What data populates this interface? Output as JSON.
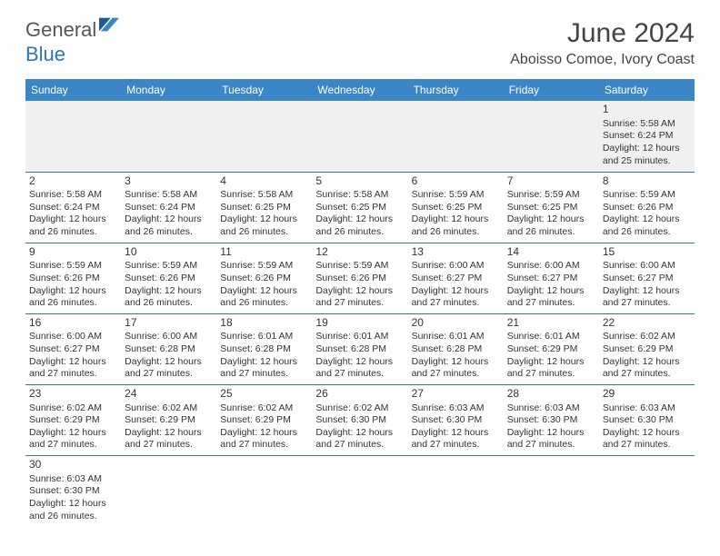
{
  "brand": {
    "part1": "General",
    "part2": "Blue"
  },
  "title": "June 2024",
  "location": "Aboisso Comoe, Ivory Coast",
  "colors": {
    "header_bg": "#3b86c7",
    "header_text": "#ffffff",
    "cell_border": "#2b77bd",
    "alt_row_bg": "#f0f0f0",
    "text": "#333333",
    "logo_gray": "#555555",
    "logo_blue": "#2b77bd"
  },
  "day_headers": [
    "Sunday",
    "Monday",
    "Tuesday",
    "Wednesday",
    "Thursday",
    "Friday",
    "Saturday"
  ],
  "weeks": [
    [
      null,
      null,
      null,
      null,
      null,
      null,
      {
        "n": "1",
        "sr": "5:58 AM",
        "ss": "6:24 PM",
        "dl": "12 hours and 25 minutes."
      }
    ],
    [
      {
        "n": "2",
        "sr": "5:58 AM",
        "ss": "6:24 PM",
        "dl": "12 hours and 26 minutes."
      },
      {
        "n": "3",
        "sr": "5:58 AM",
        "ss": "6:24 PM",
        "dl": "12 hours and 26 minutes."
      },
      {
        "n": "4",
        "sr": "5:58 AM",
        "ss": "6:25 PM",
        "dl": "12 hours and 26 minutes."
      },
      {
        "n": "5",
        "sr": "5:58 AM",
        "ss": "6:25 PM",
        "dl": "12 hours and 26 minutes."
      },
      {
        "n": "6",
        "sr": "5:59 AM",
        "ss": "6:25 PM",
        "dl": "12 hours and 26 minutes."
      },
      {
        "n": "7",
        "sr": "5:59 AM",
        "ss": "6:25 PM",
        "dl": "12 hours and 26 minutes."
      },
      {
        "n": "8",
        "sr": "5:59 AM",
        "ss": "6:26 PM",
        "dl": "12 hours and 26 minutes."
      }
    ],
    [
      {
        "n": "9",
        "sr": "5:59 AM",
        "ss": "6:26 PM",
        "dl": "12 hours and 26 minutes."
      },
      {
        "n": "10",
        "sr": "5:59 AM",
        "ss": "6:26 PM",
        "dl": "12 hours and 26 minutes."
      },
      {
        "n": "11",
        "sr": "5:59 AM",
        "ss": "6:26 PM",
        "dl": "12 hours and 26 minutes."
      },
      {
        "n": "12",
        "sr": "5:59 AM",
        "ss": "6:26 PM",
        "dl": "12 hours and 27 minutes."
      },
      {
        "n": "13",
        "sr": "6:00 AM",
        "ss": "6:27 PM",
        "dl": "12 hours and 27 minutes."
      },
      {
        "n": "14",
        "sr": "6:00 AM",
        "ss": "6:27 PM",
        "dl": "12 hours and 27 minutes."
      },
      {
        "n": "15",
        "sr": "6:00 AM",
        "ss": "6:27 PM",
        "dl": "12 hours and 27 minutes."
      }
    ],
    [
      {
        "n": "16",
        "sr": "6:00 AM",
        "ss": "6:27 PM",
        "dl": "12 hours and 27 minutes."
      },
      {
        "n": "17",
        "sr": "6:00 AM",
        "ss": "6:28 PM",
        "dl": "12 hours and 27 minutes."
      },
      {
        "n": "18",
        "sr": "6:01 AM",
        "ss": "6:28 PM",
        "dl": "12 hours and 27 minutes."
      },
      {
        "n": "19",
        "sr": "6:01 AM",
        "ss": "6:28 PM",
        "dl": "12 hours and 27 minutes."
      },
      {
        "n": "20",
        "sr": "6:01 AM",
        "ss": "6:28 PM",
        "dl": "12 hours and 27 minutes."
      },
      {
        "n": "21",
        "sr": "6:01 AM",
        "ss": "6:29 PM",
        "dl": "12 hours and 27 minutes."
      },
      {
        "n": "22",
        "sr": "6:02 AM",
        "ss": "6:29 PM",
        "dl": "12 hours and 27 minutes."
      }
    ],
    [
      {
        "n": "23",
        "sr": "6:02 AM",
        "ss": "6:29 PM",
        "dl": "12 hours and 27 minutes."
      },
      {
        "n": "24",
        "sr": "6:02 AM",
        "ss": "6:29 PM",
        "dl": "12 hours and 27 minutes."
      },
      {
        "n": "25",
        "sr": "6:02 AM",
        "ss": "6:29 PM",
        "dl": "12 hours and 27 minutes."
      },
      {
        "n": "26",
        "sr": "6:02 AM",
        "ss": "6:30 PM",
        "dl": "12 hours and 27 minutes."
      },
      {
        "n": "27",
        "sr": "6:03 AM",
        "ss": "6:30 PM",
        "dl": "12 hours and 27 minutes."
      },
      {
        "n": "28",
        "sr": "6:03 AM",
        "ss": "6:30 PM",
        "dl": "12 hours and 27 minutes."
      },
      {
        "n": "29",
        "sr": "6:03 AM",
        "ss": "6:30 PM",
        "dl": "12 hours and 27 minutes."
      }
    ],
    [
      {
        "n": "30",
        "sr": "6:03 AM",
        "ss": "6:30 PM",
        "dl": "12 hours and 26 minutes."
      },
      null,
      null,
      null,
      null,
      null,
      null
    ]
  ],
  "labels": {
    "sunrise": "Sunrise: ",
    "sunset": "Sunset: ",
    "daylight": "Daylight: "
  }
}
